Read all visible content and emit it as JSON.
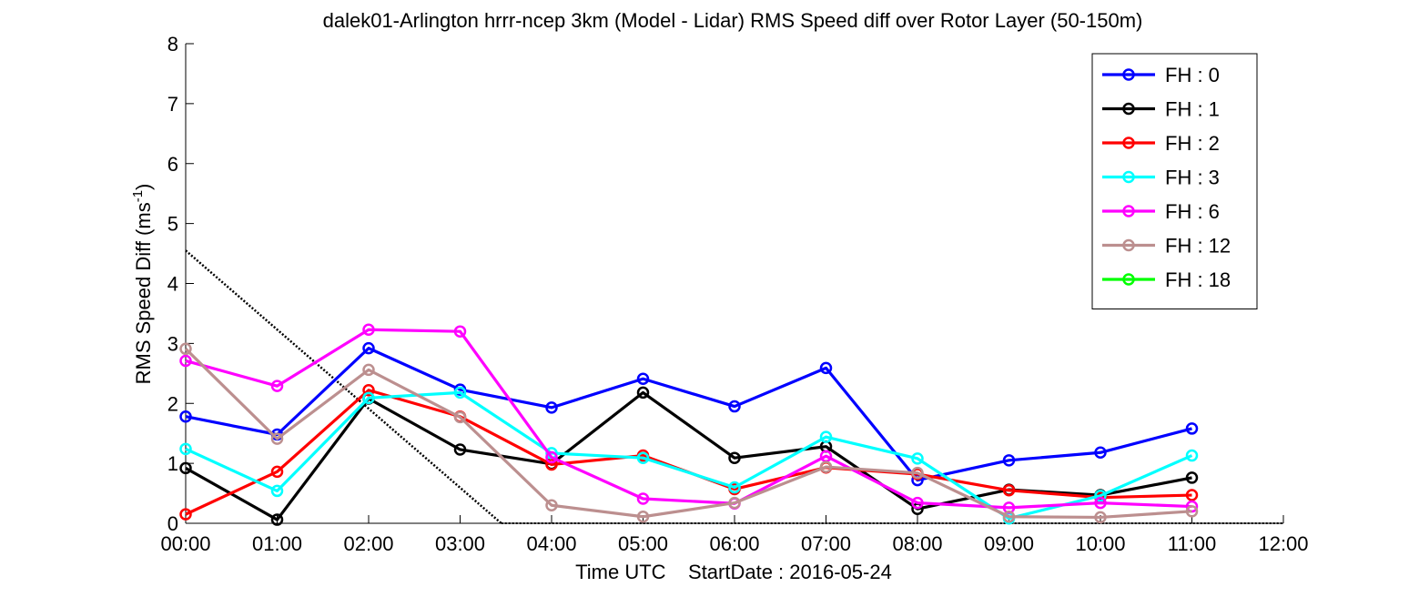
{
  "chart_data": {
    "type": "line",
    "title": "dalek01-Arlington hrrr-ncep 3km (Model - Lidar) RMS Speed diff over Rotor Layer (50-150m)",
    "xlabel": "Time UTC    StartDate : 2016-05-24",
    "ylabel_main": "RMS Speed Diff (ms",
    "ylabel_sup": "-1",
    "ylabel_end": ")",
    "xlim": [
      0,
      12
    ],
    "ylim": [
      0,
      8
    ],
    "x_ticks": [
      0,
      1,
      2,
      3,
      4,
      5,
      6,
      7,
      8,
      9,
      10,
      11,
      12
    ],
    "x_tick_labels": [
      "00:00",
      "01:00",
      "02:00",
      "03:00",
      "04:00",
      "05:00",
      "06:00",
      "07:00",
      "08:00",
      "09:00",
      "10:00",
      "11:00",
      "12:00"
    ],
    "y_ticks": [
      0,
      1,
      2,
      3,
      4,
      5,
      6,
      7,
      8
    ],
    "y_tick_labels": [
      "0",
      "1",
      "2",
      "3",
      "4",
      "5",
      "6",
      "7",
      "8"
    ],
    "legend_position": "top-right",
    "series": [
      {
        "name": "FH : 0",
        "color": "#0000FF",
        "x": [
          0,
          1,
          2,
          3,
          4,
          5,
          6,
          7,
          8,
          9,
          10,
          11
        ],
        "values": [
          1.78,
          1.48,
          2.92,
          2.23,
          1.93,
          2.41,
          1.95,
          2.59,
          0.72,
          1.05,
          1.18,
          1.58
        ]
      },
      {
        "name": "FH : 1",
        "color": "#000000",
        "x": [
          0,
          1,
          2,
          3,
          4,
          5,
          6,
          7,
          8,
          9,
          10,
          11
        ],
        "values": [
          0.92,
          0.06,
          2.08,
          1.23,
          0.99,
          2.18,
          1.09,
          1.28,
          0.24,
          0.56,
          0.47,
          0.76
        ]
      },
      {
        "name": "FH : 2",
        "color": "#FF0000",
        "x": [
          0,
          1,
          2,
          3,
          4,
          5,
          6,
          7,
          8,
          9,
          10,
          11
        ],
        "values": [
          0.15,
          0.86,
          2.22,
          1.78,
          0.98,
          1.13,
          0.57,
          0.93,
          0.82,
          0.55,
          0.43,
          0.47
        ]
      },
      {
        "name": "FH : 3",
        "color": "#00FFFF",
        "x": [
          0,
          1,
          2,
          3,
          4,
          5,
          6,
          7,
          8,
          9,
          10,
          11
        ],
        "values": [
          1.24,
          0.54,
          2.09,
          2.18,
          1.17,
          1.09,
          0.6,
          1.44,
          1.08,
          0.08,
          0.46,
          1.13
        ]
      },
      {
        "name": "FH : 6",
        "color": "#FF00FF",
        "x": [
          0,
          1,
          2,
          3,
          4,
          5,
          6,
          7,
          8,
          9,
          10,
          11
        ],
        "values": [
          2.71,
          2.29,
          3.23,
          3.2,
          1.1,
          0.41,
          0.33,
          1.12,
          0.34,
          0.26,
          0.34,
          0.28
        ]
      },
      {
        "name": "FH : 12",
        "color": "#BC8F8F",
        "x": [
          0,
          1,
          2,
          3,
          4,
          5,
          6,
          7,
          8,
          9,
          10,
          11
        ],
        "values": [
          2.91,
          1.41,
          2.56,
          1.77,
          0.3,
          0.11,
          0.34,
          0.94,
          0.84,
          0.11,
          0.1,
          0.2
        ]
      },
      {
        "name": "FH : 18",
        "color": "#00FF00",
        "x": [],
        "values": []
      }
    ],
    "reference_line": {
      "style": "dotted",
      "color": "#000000",
      "x": [
        0,
        3.45
      ],
      "values": [
        4.55,
        0
      ],
      "baseline_y": 0
    }
  }
}
